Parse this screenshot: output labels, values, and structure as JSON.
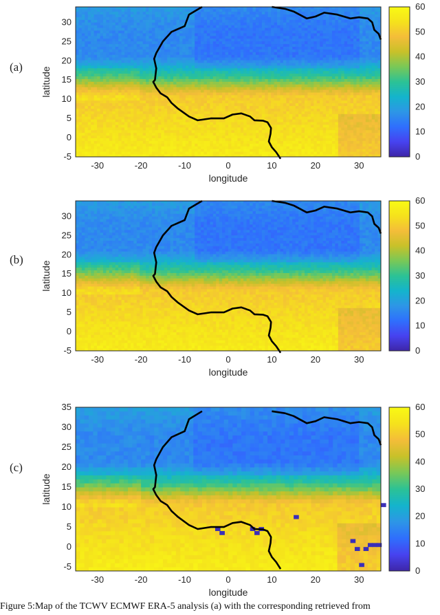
{
  "colorscale": [
    "#3e26a8",
    "#4743f0",
    "#2f6ffd",
    "#2d96e6",
    "#14b4cc",
    "#2cc295",
    "#79c857",
    "#c8c129",
    "#f4bd39",
    "#f5e21c",
    "#f9fa14"
  ],
  "panels": [
    {
      "label": "(a)",
      "xlabel": "longitude",
      "ylabel": "latitude",
      "xticks": [
        "-30",
        "-20",
        "-10",
        "0",
        "10",
        "20",
        "30"
      ],
      "yticks": [
        "30",
        "25",
        "20",
        "15",
        "10",
        "5",
        "0",
        "-5"
      ],
      "colorbar_ticks": [
        "60",
        "50",
        "40",
        "30",
        "20",
        "10",
        "0"
      ],
      "anomalies": []
    },
    {
      "label": "(b)",
      "xlabel": "longitude",
      "ylabel": "latitude",
      "xticks": [
        "-30",
        "-20",
        "-10",
        "0",
        "10",
        "20",
        "30"
      ],
      "yticks": [
        "30",
        "25",
        "20",
        "15",
        "10",
        "5",
        "0",
        "-5"
      ],
      "colorbar_ticks": [
        "60",
        "50",
        "40",
        "30",
        "20",
        "10",
        "0"
      ],
      "anomalies": []
    },
    {
      "label": "(c)",
      "xlabel": "longitude",
      "ylabel": "latitude",
      "xticks": [
        "-30",
        "-20",
        "-10",
        "0",
        "10",
        "20",
        "30"
      ],
      "yticks": [
        "35",
        "30",
        "25",
        "20",
        "15",
        "10",
        "5",
        "0",
        "-5"
      ],
      "colorbar_ticks": [
        "60",
        "50",
        "40",
        "30",
        "20",
        "10",
        "0"
      ],
      "anomalies": [
        [
          -3,
          4
        ],
        [
          -2,
          3
        ],
        [
          5,
          4
        ],
        [
          6,
          3
        ],
        [
          7,
          4
        ],
        [
          28,
          1
        ],
        [
          29,
          -1
        ],
        [
          31,
          -1
        ],
        [
          32,
          0
        ],
        [
          33,
          0
        ],
        [
          34,
          0
        ],
        [
          30,
          -5
        ],
        [
          35,
          10
        ],
        [
          15,
          7
        ]
      ]
    }
  ],
  "caption": "Figure 5:Map of the TCWV ECMWF ERA-5 analysis (a) with the corresponding retrieved from"
}
